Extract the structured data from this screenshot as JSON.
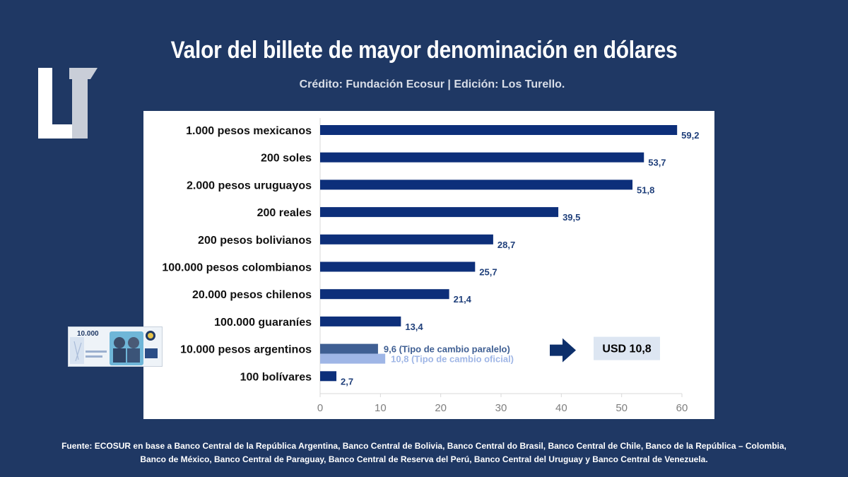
{
  "header": {
    "title": "Valor del billete de mayor denominación en dólares",
    "subtitle": "Crédito: Fundación Ecosur | Edición:  Los Turello."
  },
  "callout": {
    "label": "USD 10,8"
  },
  "banknote": {
    "denomination": "10.000"
  },
  "footer": {
    "line1": "Fuente: ECOSUR en base a Banco Central de la República Argentina, Banco Central de Bolivia, Banco Central do Brasil, Banco Central de Chile, Banco de la República – Colombia,",
    "line2": "Banco de México, Banco Central de Paraguay, Banco Central de Reserva del Perú, Banco Central del Uruguay y Banco Central de Venezuela."
  },
  "colors": {
    "background": "#1f3864",
    "bar": "#0d2f7a",
    "bar_parallel": "#3f5f93",
    "bar_official": "#9fb6e6",
    "callout_bg": "#dde6f2",
    "axis": "#d9d9d9",
    "label_blue": "#1f3f7a"
  },
  "chart_data": {
    "type": "bar",
    "orientation": "horizontal",
    "categories": [
      "1.000 pesos mexicanos",
      "200 soles",
      "2.000 pesos uruguayos",
      "200 reales",
      "200 pesos bolivianos",
      "100.000 pesos colombianos",
      "20.000 pesos chilenos",
      "100.000 guaraníes",
      "10.000 pesos argentinos",
      "100 bolívares"
    ],
    "values": [
      59.2,
      53.7,
      51.8,
      39.5,
      28.7,
      25.7,
      21.4,
      13.4,
      null,
      2.7
    ],
    "value_labels": [
      "59,2",
      "53,7",
      "51,8",
      "39,5",
      "28,7",
      "25,7",
      "21,4",
      "13,4",
      null,
      "2,7"
    ],
    "argentina_series": [
      {
        "name": "Tipo de cambio paralelo",
        "value": 9.6,
        "label": "9,6 (Tipo de cambio paralelo)"
      },
      {
        "name": "Tipo de cambio oficial",
        "value": 10.8,
        "label": "10,8 (Tipo de cambio oficial)"
      }
    ],
    "xlim": [
      0,
      60
    ],
    "xticks": [
      0,
      10,
      20,
      30,
      40,
      50,
      60
    ],
    "grid": false
  }
}
